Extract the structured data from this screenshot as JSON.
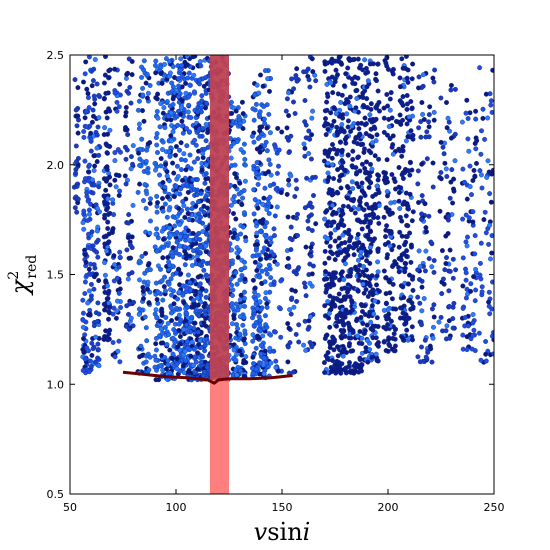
{
  "chart_data": {
    "type": "scatter",
    "title": "",
    "xlabel": {
      "italic_part": "v",
      "roman_part": "sin",
      "italic_tail": "i"
    },
    "ylabel": {
      "symbol": "χ",
      "superscript": "2",
      "subscript": "red"
    },
    "xlim": [
      50,
      250
    ],
    "ylim": [
      0.5,
      2.5
    ],
    "x_ticks": [
      "50",
      "100",
      "150",
      "200",
      "250"
    ],
    "x_tick_values": [
      50,
      100,
      150,
      200,
      250
    ],
    "y_ticks": [
      "0.5",
      "1.0",
      "1.5",
      "2.0",
      "2.5"
    ],
    "y_tick_values": [
      0.5,
      1.0,
      1.5,
      2.0,
      2.5
    ],
    "grid": false,
    "legend": "none",
    "highlight_band": {
      "x_range": [
        116,
        125
      ],
      "color": "#ff7070",
      "note": "vertical shaded region"
    },
    "envelope_curve": {
      "color": "#6b0000",
      "x": [
        75,
        85,
        95,
        105,
        115,
        118,
        120,
        125,
        135,
        145,
        155
      ],
      "y": [
        1.055,
        1.045,
        1.035,
        1.03,
        1.02,
        1.005,
        1.02,
        1.025,
        1.025,
        1.03,
        1.04
      ]
    },
    "point_columns": [
      {
        "x_range": [
          52,
          54
        ],
        "y_range": [
          1.75,
          2.5
        ],
        "n": 30,
        "color": "#1a3ac0"
      },
      {
        "x_range": [
          56,
          60
        ],
        "y_range": [
          1.05,
          2.5
        ],
        "n": 120,
        "color": "#1f4de0"
      },
      {
        "x_range": [
          60,
          64
        ],
        "y_range": [
          1.08,
          2.5
        ],
        "n": 90,
        "color": "#1840c8"
      },
      {
        "x_range": [
          66,
          69
        ],
        "y_range": [
          1.2,
          2.5
        ],
        "n": 100,
        "color": "#0d1f8f"
      },
      {
        "x_range": [
          70,
          74
        ],
        "y_range": [
          1.1,
          2.5
        ],
        "n": 60,
        "color": "#1f4de0"
      },
      {
        "x_range": [
          76,
          80
        ],
        "y_range": [
          1.25,
          2.5
        ],
        "n": 60,
        "color": "#1a3ac0"
      },
      {
        "x_range": [
          82,
          88
        ],
        "y_range": [
          1.05,
          2.5
        ],
        "n": 110,
        "color": "#1f6bf0"
      },
      {
        "x_range": [
          90,
          100
        ],
        "y_range": [
          1.02,
          2.5
        ],
        "n": 320,
        "color": "#1f6bf0"
      },
      {
        "x_range": [
          100,
          110
        ],
        "y_range": [
          1.02,
          2.5
        ],
        "n": 380,
        "color": "#1e5ef0"
      },
      {
        "x_range": [
          110,
          116
        ],
        "y_range": [
          1.02,
          2.5
        ],
        "n": 240,
        "color": "#1a55e0"
      },
      {
        "x_range": [
          116,
          125
        ],
        "y_range": [
          1.02,
          2.5
        ],
        "n": 360,
        "color": "#1450d8"
      },
      {
        "x_range": [
          125,
          133
        ],
        "y_range": [
          1.03,
          2.3
        ],
        "n": 200,
        "color": "#1f6bf0"
      },
      {
        "x_range": [
          136,
          145
        ],
        "y_range": [
          1.03,
          2.45
        ],
        "n": 260,
        "color": "#1e64f0"
      },
      {
        "x_range": [
          146,
          150
        ],
        "y_range": [
          1.05,
          2.2
        ],
        "n": 40,
        "color": "#1f4de0"
      },
      {
        "x_range": [
          152,
          158
        ],
        "y_range": [
          1.05,
          2.5
        ],
        "n": 70,
        "color": "#1a3ac0"
      },
      {
        "x_range": [
          160,
          166
        ],
        "y_range": [
          1.15,
          2.5
        ],
        "n": 70,
        "color": "#1a3ac0"
      },
      {
        "x_range": [
          170,
          178
        ],
        "y_range": [
          1.05,
          2.5
        ],
        "n": 260,
        "color": "#0d1f8f"
      },
      {
        "x_range": [
          178,
          188
        ],
        "y_range": [
          1.05,
          2.5
        ],
        "n": 300,
        "color": "#0d1f8f"
      },
      {
        "x_range": [
          188,
          196
        ],
        "y_range": [
          1.1,
          2.5
        ],
        "n": 220,
        "color": "#0d1f8f"
      },
      {
        "x_range": [
          198,
          204
        ],
        "y_range": [
          1.15,
          2.5
        ],
        "n": 120,
        "color": "#0d1f8f"
      },
      {
        "x_range": [
          205,
          212
        ],
        "y_range": [
          1.2,
          2.5
        ],
        "n": 160,
        "color": "#0d1f8f"
      },
      {
        "x_range": [
          214,
          222
        ],
        "y_range": [
          1.1,
          2.45
        ],
        "n": 90,
        "color": "#1a3ac0"
      },
      {
        "x_range": [
          224,
          232
        ],
        "y_range": [
          1.2,
          2.45
        ],
        "n": 70,
        "color": "#1a3ac0"
      },
      {
        "x_range": [
          235,
          242
        ],
        "y_range": [
          1.15,
          2.3
        ],
        "n": 80,
        "color": "#1f4de0"
      },
      {
        "x_range": [
          243,
          250
        ],
        "y_range": [
          1.1,
          2.5
        ],
        "n": 60,
        "color": "#1f4de0"
      }
    ]
  }
}
